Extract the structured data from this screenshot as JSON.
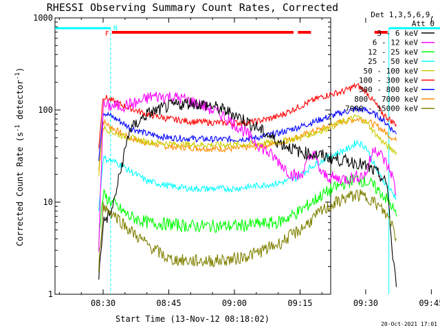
{
  "chart_data": {
    "type": "line",
    "title": "RHESSI Observing Summary Count Rates, Corrected",
    "xlabel": "Start Time (13-Nov-12 08:18:02)",
    "ylabel": "Corrected Count Rate (s⁻¹ detector⁻¹)",
    "ylabel_main": "Corrected Count Rate (s",
    "ylabel_sup1": "-1",
    "ylabel_mid": " detector",
    "ylabel_sup2": "-1",
    "ylabel_end": ")",
    "yscale": "log",
    "ylim": [
      1,
      1000
    ],
    "xlim_min": [
      19,
      82
    ],
    "x_unit": "minutes after 08:00 UT",
    "x_ticks": [
      {
        "label": "08:30",
        "min": 30
      },
      {
        "label": "08:45",
        "min": 45
      },
      {
        "label": "09:00",
        "min": 60
      },
      {
        "label": "09:15",
        "min": 75
      },
      {
        "label": "09:30",
        "min": 90
      },
      {
        "label": "09:45",
        "min": 105
      }
    ],
    "y_ticks": [
      {
        "label": "1",
        "value": 1
      },
      {
        "label": "10",
        "value": 10
      },
      {
        "label": "100",
        "value": 100
      },
      {
        "label": "1000",
        "value": 1000
      }
    ],
    "legend_header": [
      "Det 1,3,5,6,9,",
      "Att 0"
    ],
    "legend_position": "right",
    "series": [
      {
        "name": "3 - 6 keV",
        "color": "#000000",
        "points": [
          [
            29,
            1.5
          ],
          [
            30,
            6
          ],
          [
            32,
            8
          ],
          [
            36,
            60
          ],
          [
            40,
            90
          ],
          [
            45,
            110
          ],
          [
            50,
            120
          ],
          [
            55,
            110
          ],
          [
            60,
            90
          ],
          [
            65,
            65
          ],
          [
            70,
            45
          ],
          [
            75,
            35
          ],
          [
            80,
            32
          ],
          [
            85,
            28
          ],
          [
            88,
            27
          ],
          [
            91,
            23
          ],
          [
            93,
            20
          ],
          [
            95,
            15
          ],
          [
            96,
            3
          ],
          [
            97,
            1.2
          ]
        ]
      },
      {
        "name": "6 - 12 keV",
        "color": "#ff00ff",
        "points": [
          [
            29,
            3
          ],
          [
            30,
            110
          ],
          [
            34,
            110
          ],
          [
            38,
            120
          ],
          [
            41,
            140
          ],
          [
            45,
            140
          ],
          [
            49,
            130
          ],
          [
            53,
            110
          ],
          [
            57,
            90
          ],
          [
            62,
            60
          ],
          [
            66,
            40
          ],
          [
            70,
            28
          ],
          [
            73,
            20
          ],
          [
            75,
            19
          ],
          [
            78,
            35
          ],
          [
            80,
            20
          ],
          [
            83,
            18
          ],
          [
            86,
            18
          ],
          [
            90,
            20
          ],
          [
            92,
            40
          ],
          [
            94,
            30
          ],
          [
            96,
            20
          ],
          [
            97,
            12
          ]
        ]
      },
      {
        "name": "12 - 25 keV",
        "color": "#00ff00",
        "points": [
          [
            29,
            4
          ],
          [
            30,
            12
          ],
          [
            33,
            9
          ],
          [
            36,
            7
          ],
          [
            40,
            6
          ],
          [
            50,
            5.5
          ],
          [
            60,
            5.5
          ],
          [
            70,
            6
          ],
          [
            75,
            8
          ],
          [
            80,
            12
          ],
          [
            85,
            16
          ],
          [
            88,
            18
          ],
          [
            91,
            16
          ],
          [
            94,
            12
          ],
          [
            96,
            9
          ],
          [
            97,
            7
          ]
        ]
      },
      {
        "name": "25 - 50 keV",
        "color": "#00ffff",
        "points": [
          [
            29,
            8
          ],
          [
            30,
            30
          ],
          [
            33,
            27
          ],
          [
            36,
            22
          ],
          [
            40,
            17
          ],
          [
            45,
            15
          ],
          [
            50,
            14
          ],
          [
            55,
            14
          ],
          [
            60,
            14
          ],
          [
            65,
            15
          ],
          [
            70,
            16
          ],
          [
            74,
            18
          ],
          [
            78,
            25
          ],
          [
            82,
            32
          ],
          [
            86,
            38
          ],
          [
            88,
            45
          ],
          [
            90,
            40
          ],
          [
            93,
            20
          ],
          [
            95,
            15
          ],
          [
            97,
            11
          ]
        ]
      },
      {
        "name": "50 - 100 keV",
        "color": "#cccc00",
        "points": [
          [
            29,
            20
          ],
          [
            30,
            65
          ],
          [
            33,
            55
          ],
          [
            36,
            50
          ],
          [
            40,
            45
          ],
          [
            45,
            43
          ],
          [
            50,
            42
          ],
          [
            55,
            42
          ],
          [
            60,
            42
          ],
          [
            65,
            43
          ],
          [
            70,
            45
          ],
          [
            75,
            50
          ],
          [
            80,
            60
          ],
          [
            85,
            75
          ],
          [
            88,
            85
          ],
          [
            90,
            75
          ],
          [
            93,
            50
          ],
          [
            95,
            40
          ],
          [
            97,
            35
          ]
        ]
      },
      {
        "name": "100 - 300 keV",
        "color": "#ff0000",
        "points": [
          [
            29,
            40
          ],
          [
            30,
            140
          ],
          [
            33,
            120
          ],
          [
            36,
            105
          ],
          [
            40,
            90
          ],
          [
            45,
            80
          ],
          [
            50,
            75
          ],
          [
            55,
            73
          ],
          [
            60,
            72
          ],
          [
            65,
            75
          ],
          [
            70,
            85
          ],
          [
            75,
            110
          ],
          [
            80,
            140
          ],
          [
            85,
            160
          ],
          [
            88,
            185
          ],
          [
            90,
            160
          ],
          [
            92,
            120
          ],
          [
            94,
            90
          ],
          [
            96,
            75
          ],
          [
            97,
            70
          ]
        ]
      },
      {
        "name": "300 - 800 keV",
        "color": "#0000ff",
        "points": [
          [
            29,
            30
          ],
          [
            30,
            95
          ],
          [
            33,
            80
          ],
          [
            36,
            65
          ],
          [
            40,
            55
          ],
          [
            45,
            50
          ],
          [
            50,
            49
          ],
          [
            55,
            48
          ],
          [
            60,
            48
          ],
          [
            65,
            50
          ],
          [
            70,
            56
          ],
          [
            75,
            66
          ],
          [
            80,
            80
          ],
          [
            85,
            95
          ],
          [
            88,
            102
          ],
          [
            90,
            100
          ],
          [
            93,
            85
          ],
          [
            95,
            70
          ],
          [
            97,
            55
          ]
        ]
      },
      {
        "name": "800 - 7000 keV",
        "color": "#ff8c00",
        "points": [
          [
            29,
            22
          ],
          [
            30,
            75
          ],
          [
            33,
            60
          ],
          [
            36,
            50
          ],
          [
            40,
            44
          ],
          [
            45,
            40
          ],
          [
            50,
            39
          ],
          [
            55,
            38
          ],
          [
            60,
            38
          ],
          [
            65,
            40
          ],
          [
            70,
            44
          ],
          [
            75,
            52
          ],
          [
            80,
            63
          ],
          [
            85,
            75
          ],
          [
            88,
            80
          ],
          [
            90,
            78
          ],
          [
            93,
            65
          ],
          [
            95,
            55
          ],
          [
            97,
            46
          ]
        ]
      },
      {
        "name": "7000 - 15000 keV",
        "color": "#808000",
        "points": [
          [
            29,
            2
          ],
          [
            30,
            9
          ],
          [
            33,
            7
          ],
          [
            36,
            5
          ],
          [
            40,
            3.5
          ],
          [
            45,
            2.4
          ],
          [
            50,
            2.3
          ],
          [
            55,
            2.3
          ],
          [
            60,
            2.4
          ],
          [
            65,
            2.8
          ],
          [
            70,
            3.5
          ],
          [
            75,
            5
          ],
          [
            80,
            8
          ],
          [
            85,
            11
          ],
          [
            88,
            12
          ],
          [
            91,
            11
          ],
          [
            94,
            8
          ],
          [
            96,
            6
          ],
          [
            97,
            4
          ]
        ]
      }
    ],
    "flags": [
      {
        "label": "N",
        "color": "#00ffff",
        "intervals": [
          [
            19,
            31.7
          ],
          [
            95.3,
            107.5
          ]
        ]
      },
      {
        "label": "F",
        "color": "#ff0000",
        "intervals": [
          [
            32,
            73.5
          ],
          [
            74.5,
            77.5
          ],
          [
            92,
            95
          ]
        ]
      }
    ],
    "night_boundaries_min": [
      31.7,
      95.3,
      107.5
    ],
    "footer_date": "20-Oct-2021 17:01"
  }
}
